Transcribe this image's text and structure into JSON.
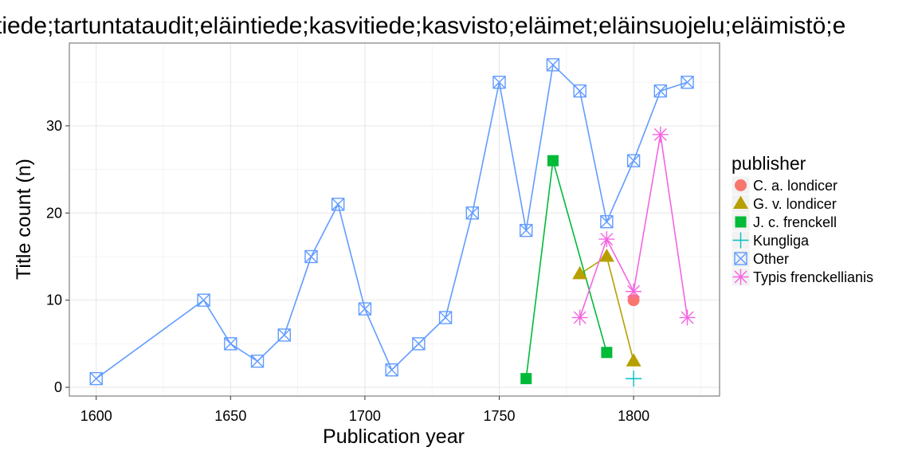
{
  "chart_data": {
    "type": "line",
    "title": "tiede;tartuntataudit;eläintiede;kasvitiede;kasvisto;eläimet;eläinsuojelu;eläimistö;e",
    "xlabel": "Publication year",
    "ylabel": "Title count (n)",
    "xlim": [
      1590,
      1832
    ],
    "ylim": [
      -1,
      39.5
    ],
    "x_ticks": [
      1600,
      1650,
      1700,
      1750,
      1800
    ],
    "y_ticks": [
      0,
      10,
      20,
      30
    ],
    "grid": true,
    "legend": {
      "title": "publisher",
      "position": "right"
    },
    "series": [
      {
        "name": "C. a. londicer",
        "color": "#F8766D",
        "marker": "circle",
        "points": [
          {
            "x": 1800,
            "y": 10
          }
        ]
      },
      {
        "name": "G. v. londicer",
        "color": "#B79F00",
        "marker": "triangle",
        "points": [
          {
            "x": 1780,
            "y": 13
          },
          {
            "x": 1790,
            "y": 15
          },
          {
            "x": 1800,
            "y": 3
          }
        ]
      },
      {
        "name": "J. c. frenckell",
        "color": "#00BA38",
        "marker": "square",
        "points": [
          {
            "x": 1760,
            "y": 1
          },
          {
            "x": 1770,
            "y": 26
          },
          {
            "x": 1790,
            "y": 4
          }
        ]
      },
      {
        "name": "Kungliga",
        "color": "#00BFC4",
        "marker": "plus",
        "points": [
          {
            "x": 1800,
            "y": 1
          }
        ]
      },
      {
        "name": "Other",
        "color": "#619CFF",
        "marker": "boxcross",
        "points": [
          {
            "x": 1600,
            "y": 1
          },
          {
            "x": 1640,
            "y": 10
          },
          {
            "x": 1650,
            "y": 5
          },
          {
            "x": 1660,
            "y": 3
          },
          {
            "x": 1670,
            "y": 6
          },
          {
            "x": 1680,
            "y": 15
          },
          {
            "x": 1690,
            "y": 21
          },
          {
            "x": 1700,
            "y": 9
          },
          {
            "x": 1710,
            "y": 2
          },
          {
            "x": 1720,
            "y": 5
          },
          {
            "x": 1730,
            "y": 8
          },
          {
            "x": 1740,
            "y": 20
          },
          {
            "x": 1750,
            "y": 35
          },
          {
            "x": 1760,
            "y": 18
          },
          {
            "x": 1770,
            "y": 37
          },
          {
            "x": 1780,
            "y": 34
          },
          {
            "x": 1790,
            "y": 19
          },
          {
            "x": 1800,
            "y": 26
          },
          {
            "x": 1810,
            "y": 34
          },
          {
            "x": 1820,
            "y": 35
          }
        ]
      },
      {
        "name": "Typis frenckellianis",
        "color": "#F564E3",
        "marker": "asterisk",
        "points": [
          {
            "x": 1780,
            "y": 8
          },
          {
            "x": 1790,
            "y": 17
          },
          {
            "x": 1800,
            "y": 11
          },
          {
            "x": 1810,
            "y": 29
          },
          {
            "x": 1820,
            "y": 8
          }
        ]
      }
    ]
  }
}
